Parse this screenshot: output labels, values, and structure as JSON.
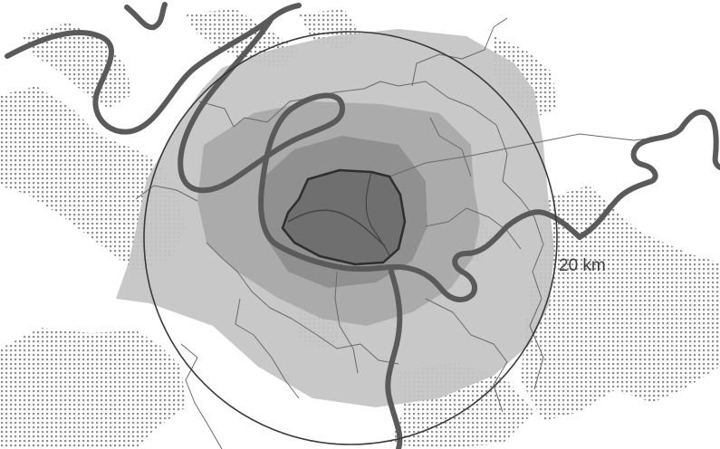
{
  "map": {
    "radius_label": "20 km",
    "colors": {
      "background": "#ffffff",
      "forest_dots": "#8f8f8f",
      "outer_zone": "#c4c4c4",
      "middle_zone": "#a9a9a9",
      "inner_zone": "#8e8e8e",
      "core_zone": "#6f6f6f",
      "river": "#5a5a5a",
      "boundaries": "#6a6a6a",
      "core_outline": "#2e2e2e",
      "radius_circle": "#3a3a3a"
    },
    "layers": [
      "forest-areas",
      "outer-zone",
      "middle-zone",
      "inner-zone",
      "core-zone",
      "municipal-boundaries",
      "river",
      "radius-circle",
      "radius-label"
    ]
  }
}
